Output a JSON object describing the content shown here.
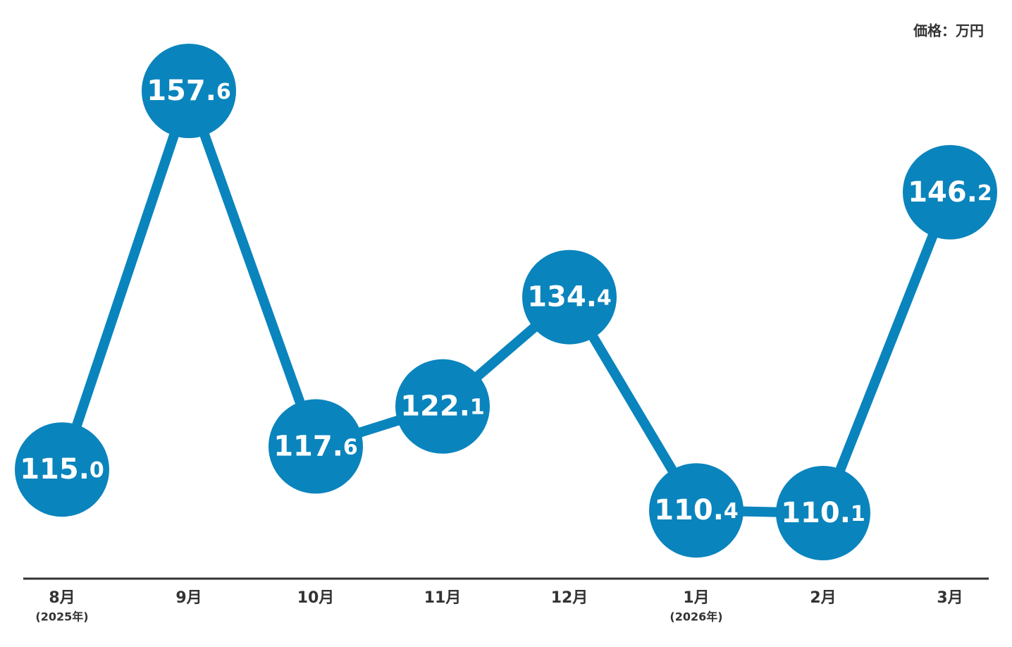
{
  "chart_data": {
    "type": "line",
    "unit_label": "価格：万円",
    "categories": [
      "8月",
      "9月",
      "10月",
      "11月",
      "12月",
      "1月",
      "2月",
      "3月"
    ],
    "category_notes": [
      "(2025年)",
      null,
      null,
      null,
      null,
      "(2026年)",
      null,
      null
    ],
    "values": [
      115.0,
      157.6,
      117.6,
      122.1,
      134.4,
      110.4,
      110.1,
      146.2
    ],
    "value_labels": [
      "115.0",
      "157.6",
      "117.6",
      "122.1",
      "134.4",
      "110.4",
      "110.1",
      "146.2"
    ],
    "color": "#0a84bd"
  }
}
